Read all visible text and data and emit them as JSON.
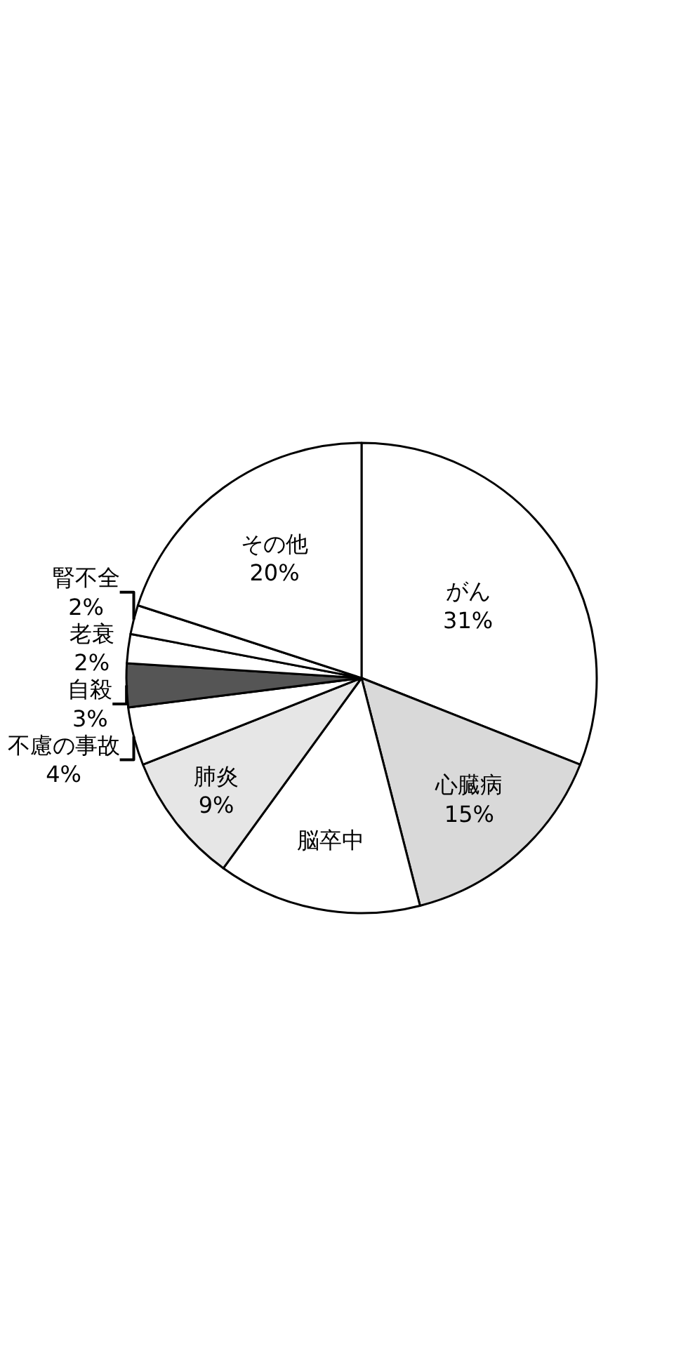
{
  "chart_data": {
    "type": "pie",
    "categories": [
      "がん",
      "心臓病",
      "脳卒中",
      "肺炎",
      "不慮の事故",
      "自殺",
      "老衰",
      "腎不全",
      "その他"
    ],
    "values": [
      31,
      15,
      14,
      9,
      4,
      3,
      2,
      2,
      20
    ],
    "value_labels": [
      "31%",
      "15%",
      null,
      "9%",
      "4%",
      "3%",
      "2%",
      "2%",
      "20%"
    ],
    "colors": [
      "#ffffff",
      "#d9d9d9",
      "#ffffff",
      "#e6e6e6",
      "#ffffff",
      "#555555",
      "#ffffff",
      "#ffffff",
      "#ffffff"
    ],
    "legend": false
  }
}
